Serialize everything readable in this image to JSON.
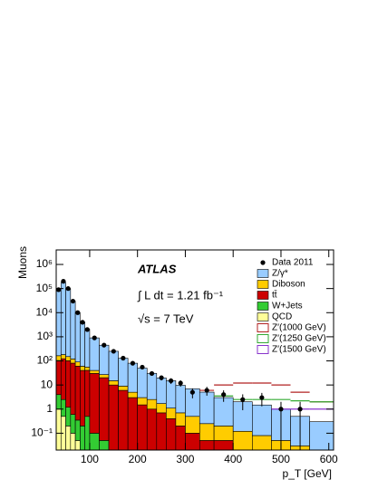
{
  "chart_data": {
    "type": "stacked-histogram",
    "experiment": "ATLAS",
    "luminosity": "∫ L dt = 1.21 fb⁻¹",
    "energy": "√s = 7 TeV",
    "ylabel": "Muons",
    "xlabel": "p_T [GeV]",
    "log_y": true,
    "legend": "upper right",
    "xlim": [
      30,
      610
    ],
    "ylim": [
      0.02,
      4000000
    ],
    "xticks": [
      100,
      200,
      300,
      400,
      500,
      600
    ],
    "yticks": [
      {
        "value": 0.1,
        "label": "10⁻¹"
      },
      1,
      10,
      {
        "value": 100,
        "label": "10²"
      },
      {
        "value": 1000,
        "label": "10³"
      },
      {
        "value": 10000,
        "label": "10⁴"
      },
      {
        "value": 100000,
        "label": "10⁵"
      },
      {
        "value": 1000000,
        "label": "10⁶"
      }
    ],
    "bins": [
      30,
      40,
      50,
      60,
      70,
      80,
      90,
      100,
      120,
      140,
      160,
      180,
      200,
      220,
      240,
      260,
      280,
      300,
      330,
      360,
      400,
      440,
      480,
      520,
      560,
      610
    ],
    "data": {
      "name": "Data 2011",
      "color": "#000000",
      "values": [
        90000,
        200000,
        100000,
        30000,
        10000,
        4000,
        2000,
        900,
        450,
        250,
        130,
        80,
        55,
        30,
        20,
        15,
        12,
        5,
        6,
        4,
        2.5,
        3,
        1,
        1,
        null
      ],
      "errors": [
        300,
        450,
        320,
        170,
        100,
        63,
        45,
        30,
        21,
        16,
        11,
        9,
        7,
        5.5,
        4.5,
        4,
        3.5,
        2.2,
        2.4,
        2,
        1.6,
        1.7,
        1,
        1,
        null
      ]
    },
    "series": [
      {
        "name": "Z/γ*",
        "color": "#99ccff",
        "values": [
          80000,
          180000,
          100000,
          30000,
          10000,
          4000,
          2000,
          860,
          420,
          235,
          120,
          75,
          47,
          28,
          18,
          14,
          9,
          6.5,
          4.8,
          2.8,
          1.9,
          1.4,
          0.95,
          0.47,
          0.28
        ]
      },
      {
        "name": "Diboson",
        "color": "#ffcc00",
        "values": [
          60,
          60,
          50,
          40,
          30,
          20,
          15,
          10,
          7,
          5,
          3,
          2,
          1.5,
          1.5,
          1,
          0.7,
          0.5,
          0.4,
          0.2,
          0.15,
          0.1,
          0.08,
          0.05,
          0.03,
          0.02
        ]
      },
      {
        "name": "tt̄",
        "color": "#cc0000",
        "values": [
          100,
          120,
          100,
          80,
          60,
          40,
          40,
          30,
          20,
          10,
          6,
          3,
          1.5,
          1,
          0.7,
          0.4,
          0.2,
          0.1,
          0.05,
          0.05,
          0.02,
          0,
          0,
          0,
          0
        ]
      },
      {
        "name": "W+Jets",
        "color": "#33cc33",
        "values": [
          3,
          2,
          1,
          0.5,
          0.3,
          0.2,
          0.5,
          0.1,
          0.05,
          0,
          0,
          0,
          0,
          0,
          0,
          0,
          0,
          0,
          0,
          0,
          0,
          0,
          0,
          0,
          0
        ]
      },
      {
        "name": "QCD",
        "color": "#ffff99",
        "values": [
          1,
          0.5,
          0.2,
          0.1,
          0.05,
          0,
          0,
          0,
          0,
          0,
          0,
          0,
          0,
          0,
          0,
          0,
          0,
          0,
          0,
          0,
          0,
          0,
          0,
          0,
          0
        ]
      }
    ],
    "lines": [
      {
        "name": "Z′(1000 GeV)",
        "color": "#b22222",
        "values": [
          null,
          null,
          null,
          null,
          null,
          null,
          null,
          null,
          null,
          null,
          null,
          null,
          null,
          null,
          null,
          null,
          null,
          null,
          6,
          10,
          12,
          12,
          10,
          5,
          2
        ]
      },
      {
        "name": "Z′(1250 GeV)",
        "color": "#33aa33",
        "values": [
          null,
          null,
          null,
          null,
          null,
          null,
          null,
          null,
          null,
          null,
          null,
          null,
          null,
          null,
          null,
          null,
          null,
          null,
          null,
          3.5,
          2.5,
          2.5,
          2.5,
          2.2,
          2
        ]
      },
      {
        "name": "Z′(1500 GeV)",
        "color": "#8833cc",
        "values": [
          null,
          null,
          null,
          null,
          null,
          null,
          null,
          null,
          null,
          null,
          null,
          null,
          null,
          null,
          null,
          null,
          null,
          null,
          null,
          null,
          null,
          null,
          1,
          1,
          1
        ]
      }
    ]
  }
}
